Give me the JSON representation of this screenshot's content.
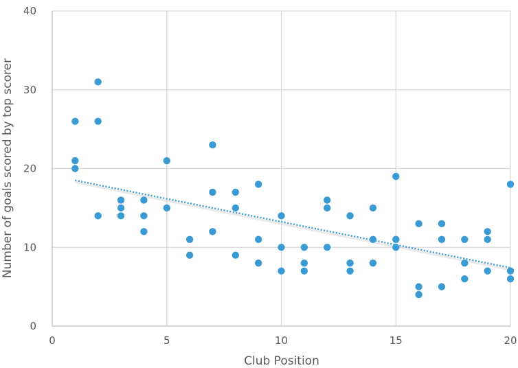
{
  "chart_data": {
    "type": "scatter",
    "title": "",
    "xlabel": "Club Position",
    "ylabel": "Number of goals scored by top scorer",
    "xlim": [
      0,
      20
    ],
    "ylim": [
      0,
      40
    ],
    "x_ticks": [
      0,
      5,
      10,
      15,
      20
    ],
    "y_ticks": [
      0,
      10,
      20,
      30,
      40
    ],
    "grid": true,
    "legend": "none",
    "trendline": {
      "type": "linear",
      "style": "dotted",
      "x_from": 1,
      "x_to": 20,
      "y_at_x1": 18.5,
      "y_at_x20": 7.4
    },
    "colors": {
      "point": "#3a9bd4",
      "trend": "#3a9bd4",
      "grid": "#d9d9d9",
      "axis": "#bfbfbf",
      "text": "#595959"
    },
    "points": [
      [
        1,
        26
      ],
      [
        1,
        21
      ],
      [
        1,
        20
      ],
      [
        2,
        31
      ],
      [
        2,
        26
      ],
      [
        2,
        14
      ],
      [
        3,
        16
      ],
      [
        3,
        15
      ],
      [
        3,
        14
      ],
      [
        4,
        16
      ],
      [
        4,
        14
      ],
      [
        4,
        12
      ],
      [
        5,
        21
      ],
      [
        5,
        15
      ],
      [
        6,
        11
      ],
      [
        6,
        9
      ],
      [
        7,
        23
      ],
      [
        7,
        17
      ],
      [
        7,
        12
      ],
      [
        8,
        17
      ],
      [
        8,
        15
      ],
      [
        8,
        9
      ],
      [
        9,
        18
      ],
      [
        9,
        11
      ],
      [
        9,
        8
      ],
      [
        10,
        14
      ],
      [
        10,
        10
      ],
      [
        10,
        7
      ],
      [
        11,
        10
      ],
      [
        11,
        8
      ],
      [
        11,
        7
      ],
      [
        12,
        16
      ],
      [
        12,
        15
      ],
      [
        12,
        10
      ],
      [
        13,
        14
      ],
      [
        13,
        8
      ],
      [
        13,
        7
      ],
      [
        14,
        15
      ],
      [
        14,
        11
      ],
      [
        14,
        8
      ],
      [
        15,
        19
      ],
      [
        15,
        11
      ],
      [
        15,
        10
      ],
      [
        16,
        13
      ],
      [
        16,
        5
      ],
      [
        16,
        4
      ],
      [
        17,
        13
      ],
      [
        17,
        11
      ],
      [
        17,
        5
      ],
      [
        18,
        11
      ],
      [
        18,
        8
      ],
      [
        18,
        6
      ],
      [
        19,
        12
      ],
      [
        19,
        11
      ],
      [
        19,
        7
      ],
      [
        20,
        18
      ],
      [
        20,
        7
      ],
      [
        20,
        6
      ]
    ]
  }
}
